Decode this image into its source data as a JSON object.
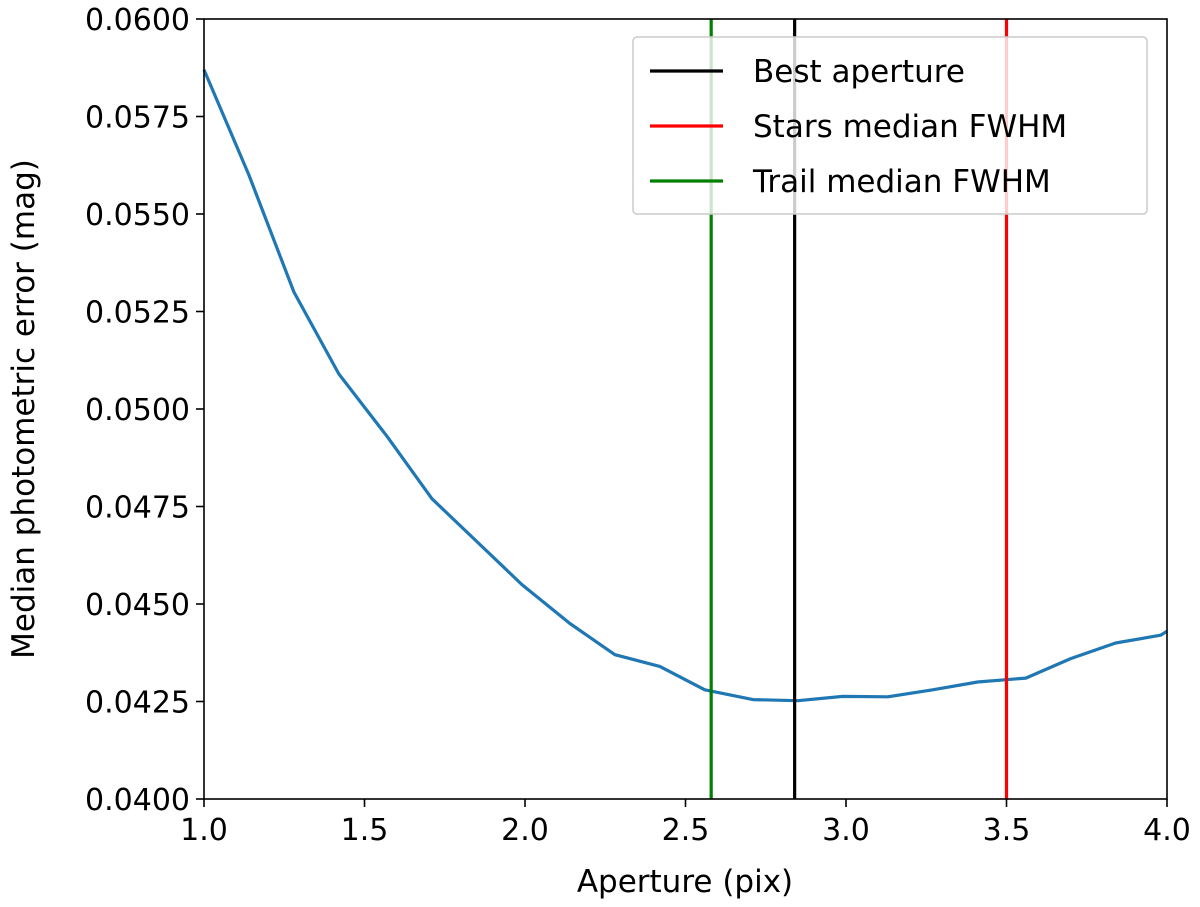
{
  "chart_data": {
    "type": "line",
    "title": "",
    "xlabel": "Aperture (pix)",
    "ylabel": "Median photometric error (mag)",
    "xlim": [
      1.0,
      4.0
    ],
    "ylim": [
      0.04,
      0.06
    ],
    "xticks": [
      1.0,
      1.5,
      2.0,
      2.5,
      3.0,
      3.5,
      4.0
    ],
    "xtick_labels": [
      "1.0",
      "1.5",
      "2.0",
      "2.5",
      "3.0",
      "3.5",
      "4.0"
    ],
    "yticks": [
      0.04,
      0.0425,
      0.045,
      0.0475,
      0.05,
      0.0525,
      0.055,
      0.0575,
      0.06
    ],
    "ytick_labels": [
      "0.0400",
      "0.0425",
      "0.0450",
      "0.0475",
      "0.0500",
      "0.0525",
      "0.0550",
      "0.0575",
      "0.0600"
    ],
    "grid": false,
    "legend_position": "top-right",
    "series": [
      {
        "color": "#1f77b4",
        "x": [
          1.0,
          1.14,
          1.28,
          1.42,
          1.57,
          1.71,
          1.85,
          1.99,
          2.14,
          2.28,
          2.42,
          2.56,
          2.71,
          2.85,
          2.99,
          3.13,
          3.27,
          3.41,
          3.56,
          3.7,
          3.84,
          3.98,
          4.0
        ],
        "y": [
          0.0587,
          0.056,
          0.053,
          0.0509,
          0.0493,
          0.0477,
          0.0466,
          0.0455,
          0.0445,
          0.0437,
          0.0434,
          0.0428,
          0.04255,
          0.04252,
          0.04263,
          0.04262,
          0.0428,
          0.043,
          0.0431,
          0.0436,
          0.044,
          0.0442,
          0.0443
        ]
      }
    ],
    "vlines": [
      {
        "name": "Best aperture",
        "x": 2.84,
        "color": "#000000"
      },
      {
        "name": "Stars median FWHM",
        "x": 3.5,
        "color": "#ff0000"
      },
      {
        "name": "Trail median FWHM",
        "x": 2.58,
        "color": "#008000"
      }
    ]
  }
}
